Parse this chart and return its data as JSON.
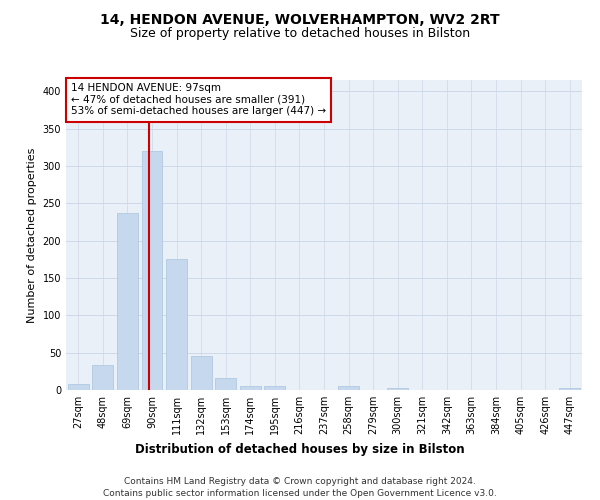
{
  "title1": "14, HENDON AVENUE, WOLVERHAMPTON, WV2 2RT",
  "title2": "Size of property relative to detached houses in Bilston",
  "xlabel": "Distribution of detached houses by size in Bilston",
  "ylabel": "Number of detached properties",
  "categories": [
    "27sqm",
    "48sqm",
    "69sqm",
    "90sqm",
    "111sqm",
    "132sqm",
    "153sqm",
    "174sqm",
    "195sqm",
    "216sqm",
    "237sqm",
    "258sqm",
    "279sqm",
    "300sqm",
    "321sqm",
    "342sqm",
    "363sqm",
    "384sqm",
    "405sqm",
    "426sqm",
    "447sqm"
  ],
  "values": [
    8,
    33,
    237,
    320,
    175,
    46,
    16,
    6,
    5,
    0,
    0,
    5,
    0,
    3,
    0,
    0,
    0,
    0,
    0,
    0,
    3
  ],
  "bar_color": "#c5d8ed",
  "bar_edge_color": "#a8c4de",
  "grid_color": "#cdd8e8",
  "bg_color": "#eaf0f8",
  "vline_color": "#cc0000",
  "annotation_text": "14 HENDON AVENUE: 97sqm\n← 47% of detached houses are smaller (391)\n53% of semi-detached houses are larger (447) →",
  "annotation_box_color": "#ffffff",
  "annotation_border_color": "#cc0000",
  "footer1": "Contains HM Land Registry data © Crown copyright and database right 2024.",
  "footer2": "Contains public sector information licensed under the Open Government Licence v3.0.",
  "ylim": [
    0,
    415
  ],
  "title1_fontsize": 10,
  "title2_fontsize": 9,
  "annotation_fontsize": 7.5,
  "tick_fontsize": 7,
  "ylabel_fontsize": 8,
  "xlabel_fontsize": 8.5,
  "footer_fontsize": 6.5,
  "yticks": [
    0,
    50,
    100,
    150,
    200,
    250,
    300,
    350,
    400
  ]
}
